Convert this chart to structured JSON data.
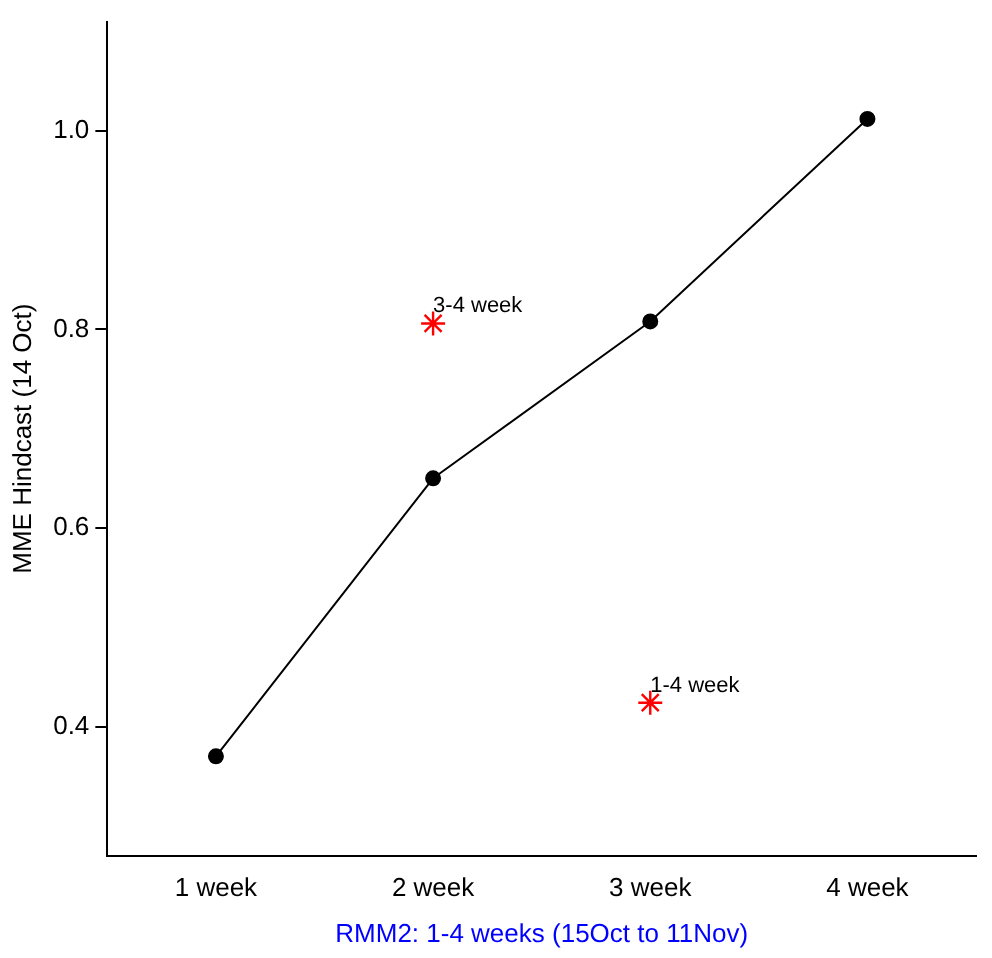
{
  "chart_data": {
    "type": "line",
    "xlabel": "RMM2: 1-4 weeks (15Oct to 11Nov)",
    "ylabel": "MME Hindcast (14 Oct)",
    "categories": [
      "1 week",
      "2 week",
      "3 week",
      "4 week"
    ],
    "series": [
      {
        "color": "#000000",
        "marker": "circle",
        "values": [
          0.37,
          0.65,
          0.808,
          1.012
        ]
      },
      {
        "type": "scatter",
        "color": "#ff0000",
        "marker": "cross",
        "values": [
          null,
          0.806,
          0.424,
          null
        ]
      }
    ],
    "annotations": [
      {
        "text": "3-4 week",
        "x": "2 week",
        "y": 0.806
      },
      {
        "text": "1-4 week",
        "x": "3 week",
        "y": 0.424
      }
    ],
    "ylim": [
      0.27,
      1.11
    ],
    "yticks": [
      0.4,
      0.6,
      0.8,
      {
        "value": 1,
        "label": "1.0"
      }
    ],
    "grid": false,
    "legend": false,
    "line_style": "solid"
  }
}
